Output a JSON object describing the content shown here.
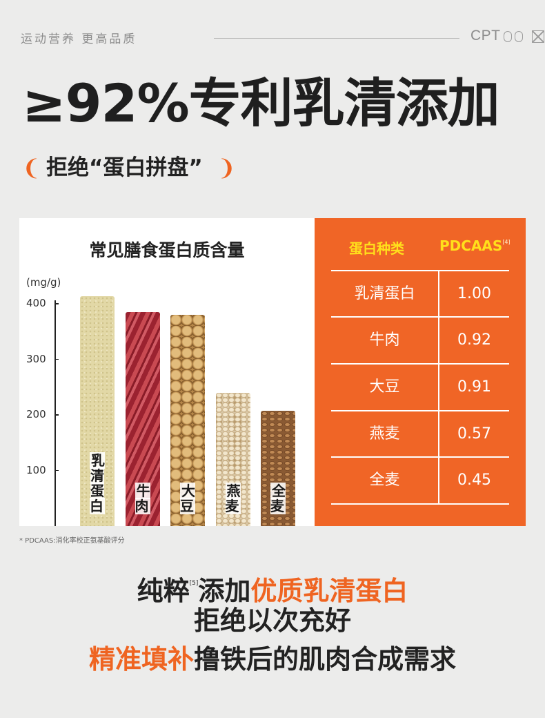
{
  "topbar": {
    "slogan": "运动营养  更高品质",
    "brand": "CPT"
  },
  "headline": "≥92%专利乳清添加",
  "subline": {
    "left_bracket": "❨",
    "text": "拒绝“蛋白拼盘”",
    "right_bracket": "❩"
  },
  "chart": {
    "title": "常见膳食蛋白质含量",
    "unit": "(mg/g)"
  },
  "chart_data": {
    "type": "bar",
    "title": "常见膳食蛋白质含量",
    "ylabel": "(mg/g)",
    "xlabel": "",
    "yticks": [
      "400",
      "300",
      "200",
      "100"
    ],
    "ytick_values": [
      400,
      300,
      200,
      100
    ],
    "ylim": [
      0,
      400
    ],
    "categories": [
      "乳清蛋白",
      "牛肉",
      "大豆",
      "燕麦",
      "全麦"
    ],
    "values": [
      414,
      385,
      380,
      240,
      208
    ],
    "bar_textures": [
      "whey",
      "beef",
      "soy",
      "oat",
      "wheat"
    ],
    "grid": false
  },
  "table": {
    "headers": [
      "蛋白种类",
      "PDCAAS"
    ],
    "header_ref": "[4]",
    "rows": [
      {
        "type": "乳清蛋白",
        "score": "1.00"
      },
      {
        "type": "牛肉",
        "score": "0.92"
      },
      {
        "type": "大豆",
        "score": "0.91"
      },
      {
        "type": "燕麦",
        "score": "0.57"
      },
      {
        "type": "全麦",
        "score": "0.45"
      }
    ]
  },
  "footnote": "* PDCAAS:消化率校正氨基酸评分",
  "bottom": {
    "line1_prefix": "纯粹",
    "line1_ref": "[5]",
    "line1_mid": "添加",
    "line1_highlight": "优质乳清蛋白",
    "line2": "拒绝以次充好",
    "line3_highlight": "精准填补",
    "line3_rest": "撸铁后的肌肉合成需求"
  },
  "colors": {
    "background": "#ececeb",
    "accent": "#f06526",
    "header_yellow": "#ffe01b",
    "text_dark": "#222222"
  }
}
